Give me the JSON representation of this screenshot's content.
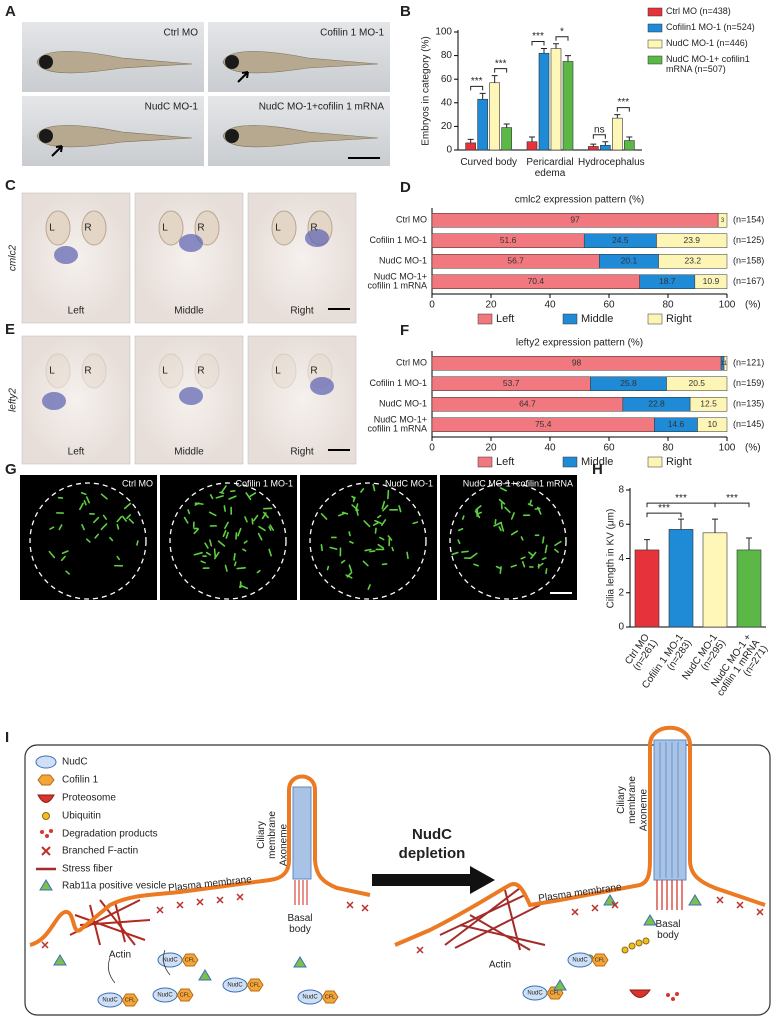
{
  "panel_labels": {
    "a": "A",
    "b": "B",
    "c": "C",
    "d": "D",
    "e": "E",
    "f": "F",
    "g": "G",
    "h": "H",
    "i": "I"
  },
  "panel_a": {
    "images": [
      "Ctrl MO",
      "Cofilin 1 MO-1",
      "NudC MO-1",
      "NudC MO-1+cofilin 1 mRNA"
    ]
  },
  "panel_c": {
    "gene": "cmlc2",
    "images": [
      {
        "caption": "Left",
        "eyes": [
          "L",
          "R"
        ]
      },
      {
        "caption": "Middle",
        "eyes": [
          "L",
          "R"
        ]
      },
      {
        "caption": "Right",
        "eyes": [
          "L",
          "R"
        ]
      }
    ]
  },
  "panel_e": {
    "gene": "lefty2",
    "images": [
      {
        "caption": "Left",
        "eyes": [
          "L",
          "R"
        ]
      },
      {
        "caption": "Middle",
        "eyes": [
          "L",
          "R"
        ]
      },
      {
        "caption": "Right",
        "eyes": [
          "L",
          "R"
        ]
      }
    ]
  },
  "panel_g": {
    "images": [
      "Ctrl MO",
      "Cofilin 1 MO-1",
      "NudC MO-1",
      "NudC MO-1+cofilin1 mRNA"
    ]
  },
  "chart_data": [
    {
      "type": "bar",
      "ylabel": "Embryos in category (%)",
      "categories": [
        [
          "Curved body"
        ],
        [
          "Pericardial",
          "edema"
        ],
        [
          "Hydrocephalus"
        ]
      ],
      "series": [
        {
          "name": "Ctrl MO (n=438)",
          "color": "#e6323a",
          "values": [
            6,
            7,
            3
          ],
          "errors": [
            3,
            4,
            2
          ]
        },
        {
          "name": "Cofilin1 MO-1 (n=524)",
          "color": "#1f8ad6",
          "values": [
            43,
            82,
            4
          ],
          "errors": [
            5,
            4,
            3
          ]
        },
        {
          "name": "NudC MO-1 (n=446)",
          "color": "#fef7b8",
          "values": [
            57,
            86,
            27
          ],
          "errors": [
            6,
            4,
            3
          ]
        },
        {
          "name": "NudC MO-1+ cofilin1 mRNA (n=507)",
          "color": "#5bb847",
          "values": [
            19,
            75,
            8
          ],
          "errors": [
            3,
            5,
            3
          ]
        }
      ],
      "ylim": [
        0,
        100
      ],
      "yticks": [
        0,
        20,
        40,
        60,
        80,
        100
      ],
      "significance": [
        [
          "***",
          "***"
        ],
        [
          "***",
          "*"
        ],
        [
          "ns",
          "***"
        ]
      ]
    },
    {
      "type": "stacked_hbar",
      "title": "cmlc2 expression pattern (%)",
      "categories": [
        [
          "Ctrl MO"
        ],
        [
          "Cofilin 1 MO-1"
        ],
        [
          "NudC MO-1"
        ],
        [
          "NudC MO-1+",
          "cofilin 1 mRNA"
        ]
      ],
      "series": [
        {
          "name": "Left",
          "color": "#f2787f",
          "values": [
            97,
            51.6,
            56.7,
            70.4
          ]
        },
        {
          "name": "Middle",
          "color": "#1f8ad6",
          "values": [
            0,
            24.5,
            20.1,
            18.7
          ]
        },
        {
          "name": "Right",
          "color": "#fdf5b6",
          "values": [
            3,
            23.9,
            23.2,
            10.9
          ]
        }
      ],
      "n_labels": [
        "(n=154)",
        "(n=125)",
        "(n=158)",
        "(n=167)"
      ],
      "xlim": [
        0,
        100
      ],
      "xticks": [
        0,
        20,
        40,
        60,
        80,
        100
      ],
      "xunit": "(%)"
    },
    {
      "type": "stacked_hbar",
      "title": "lefty2 expression pattern (%)",
      "categories": [
        [
          "Ctrl MO"
        ],
        [
          "Cofilin 1 MO-1"
        ],
        [
          "NudC MO-1"
        ],
        [
          "NudC MO-1+",
          "cofilin 1 mRNA"
        ]
      ],
      "series": [
        {
          "name": "Left",
          "color": "#f2787f",
          "values": [
            98,
            53.7,
            64.7,
            75.4
          ]
        },
        {
          "name": "Middle",
          "color": "#1f8ad6",
          "values": [
            1,
            25.8,
            22.8,
            14.6
          ]
        },
        {
          "name": "Right",
          "color": "#fdf5b6",
          "values": [
            1,
            20.5,
            12.5,
            10
          ]
        }
      ],
      "n_labels": [
        "(n=121)",
        "(n=159)",
        "(n=135)",
        "(n=145)"
      ],
      "xlim": [
        0,
        100
      ],
      "xticks": [
        0,
        20,
        40,
        60,
        80,
        100
      ],
      "xunit": "(%)"
    },
    {
      "type": "bar",
      "ylabel": "Cilia length in KV (μm)",
      "categories": [
        [
          "Ctrl MO",
          "(n=261)"
        ],
        [
          "Cofilin 1 MO-1",
          "(n=283)"
        ],
        [
          "NudC MO-1",
          "(n=295)"
        ],
        [
          "NudC MO-1 +",
          "cofilin 1 mRNA",
          "(n=271)"
        ]
      ],
      "colors": [
        "#e6323a",
        "#1f8ad6",
        "#fef7b8",
        "#5bb847"
      ],
      "values": [
        4.5,
        5.7,
        5.5,
        4.5
      ],
      "errors": [
        0.6,
        0.6,
        0.8,
        0.7
      ],
      "ylim": [
        0,
        8
      ],
      "yticks": [
        0,
        2,
        4,
        6,
        8
      ],
      "significance": [
        "***",
        "***",
        "***"
      ]
    }
  ],
  "panel_i": {
    "legend": [
      "NudC",
      "Cofilin 1",
      "Proteosome",
      "Ubiquitin",
      "Degradation products",
      "Branched F-actin",
      "Stress fiber",
      "Rab11a positive vesicle"
    ],
    "arrow_label": [
      "NudC",
      "depletion"
    ],
    "left": {
      "plasma_membrane": "Plasma membrane",
      "ciliary_membrane": [
        "Ciliary",
        "membrane"
      ],
      "axoneme": "Axoneme",
      "basal_body": [
        "Basal",
        "body"
      ],
      "actin": "Actin"
    },
    "right": {
      "plasma_membrane": "Plasma membrane",
      "ciliary_membrane": [
        "Ciliary",
        "membrane"
      ],
      "axoneme": "Axoneme",
      "basal_body": [
        "Basal",
        "body"
      ],
      "actin": "Actin"
    },
    "icon_labels": {
      "nudc": "NudC",
      "cfl": "CFL"
    }
  }
}
